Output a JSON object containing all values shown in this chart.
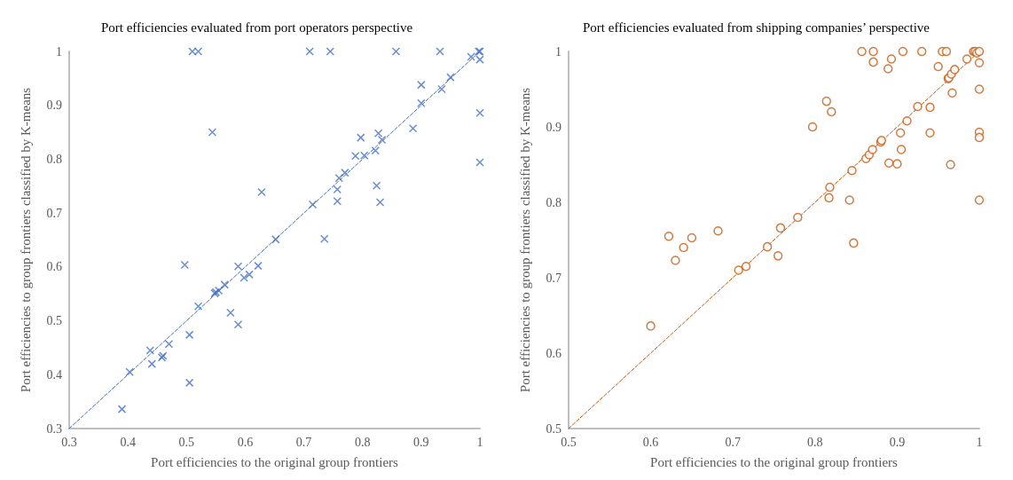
{
  "chart_data": [
    {
      "type": "scatter",
      "title": "Port efficiencies evaluated from port operators perspective",
      "xlabel": "Port efficiencies to the original group frontiers",
      "ylabel": "Port efficiencies to group frontiers classified by K-means",
      "marker": "cross",
      "xlim": [
        0.3,
        1
      ],
      "ylim": [
        0.3,
        1
      ],
      "xticks": [
        0.3,
        0.4,
        0.5,
        0.6,
        0.7,
        0.8,
        0.9,
        1
      ],
      "yticks": [
        0.3,
        0.4,
        0.5,
        0.6,
        0.7,
        0.8,
        0.9,
        1
      ],
      "series": [
        {
          "type": "scatter",
          "color": "#4472c4",
          "x": [
            0.39,
            0.403,
            0.438,
            0.441,
            0.458,
            0.46,
            0.47,
            0.497,
            0.505,
            0.505,
            0.51,
            0.52,
            0.52,
            0.544,
            0.548,
            0.55,
            0.555,
            0.565,
            0.575,
            0.588,
            0.588,
            0.598,
            0.607,
            0.622,
            0.628,
            0.652,
            0.71,
            0.715,
            0.735,
            0.745,
            0.757,
            0.757,
            0.76,
            0.77,
            0.788,
            0.797,
            0.803,
            0.822,
            0.824,
            0.827,
            0.83,
            0.833,
            0.857,
            0.886,
            0.9,
            0.9,
            0.932,
            0.935,
            0.95,
            0.985,
            0.998,
            1,
            1,
            1,
            1
          ],
          "values": [
            0.336,
            0.405,
            0.445,
            0.42,
            0.432,
            0.435,
            0.457,
            0.604,
            0.474,
            0.385,
            1,
            1,
            0.527,
            0.85,
            0.551,
            0.553,
            0.556,
            0.567,
            0.515,
            0.601,
            0.493,
            0.58,
            0.586,
            0.602,
            0.739,
            0.651,
            1,
            0.716,
            0.652,
            1,
            0.744,
            0.722,
            0.765,
            0.775,
            0.806,
            0.84,
            0.807,
            0.816,
            0.751,
            0.848,
            0.72,
            0.836,
            1,
            0.857,
            0.938,
            0.904,
            1,
            0.93,
            0.952,
            0.99,
            1,
            1,
            0.985,
            0.886,
            0.794
          ]
        },
        {
          "type": "line",
          "color": "#4472c4",
          "line_style": "dashed",
          "marker": "none",
          "x": [
            0.3,
            1
          ],
          "values": [
            0.3,
            1
          ]
        }
      ]
    },
    {
      "type": "scatter",
      "title": "Port efficiencies evaluated from shipping companies’ perspective",
      "xlabel": "Port efficiencies to the original group frontiers",
      "ylabel": "Port efficiencies to group frontiers classified by K-means",
      "marker": "circle",
      "xlim": [
        0.5,
        1
      ],
      "ylim": [
        0.5,
        1
      ],
      "xticks": [
        0.5,
        0.6,
        0.7,
        0.8,
        0.9,
        1
      ],
      "yticks": [
        0.5,
        0.6,
        0.7,
        0.8,
        0.9,
        1
      ],
      "series": [
        {
          "type": "scatter",
          "color": "#c55a11",
          "x": [
            0.6,
            0.622,
            0.63,
            0.64,
            0.65,
            0.682,
            0.707,
            0.716,
            0.742,
            0.755,
            0.758,
            0.779,
            0.797,
            0.814,
            0.82,
            0.818,
            0.817,
            0.842,
            0.845,
            0.847,
            0.857,
            0.862,
            0.866,
            0.871,
            0.871,
            0.87,
            0.88,
            0.881,
            0.889,
            0.89,
            0.893,
            0.9,
            0.904,
            0.905,
            0.907,
            0.912,
            0.925,
            0.93,
            0.94,
            0.94,
            0.95,
            0.955,
            0.96,
            0.962,
            0.963,
            0.965,
            0.967,
            0.966,
            0.97,
            0.985,
            0.993,
            0.995,
            0.997,
            1,
            1,
            1,
            1,
            1,
            1
          ],
          "values": [
            0.636,
            0.755,
            0.723,
            0.74,
            0.753,
            0.762,
            0.71,
            0.715,
            0.741,
            0.729,
            0.766,
            0.78,
            0.9,
            0.934,
            0.92,
            0.82,
            0.806,
            0.803,
            0.842,
            0.746,
            1,
            0.858,
            0.863,
            1,
            0.986,
            0.87,
            0.88,
            0.882,
            0.977,
            0.852,
            0.99,
            0.851,
            0.892,
            0.87,
            1,
            0.908,
            0.927,
            1,
            0.926,
            0.892,
            0.98,
            1,
            1,
            0.964,
            0.965,
            0.85,
            0.945,
            0.97,
            0.976,
            0.99,
            1,
            1,
            0.998,
            1,
            0.985,
            0.95,
            0.893,
            0.886,
            0.803
          ]
        },
        {
          "type": "line",
          "color": "#c55a11",
          "line_style": "dashed",
          "marker": "none",
          "x": [
            0.5,
            1
          ],
          "values": [
            0.5,
            1
          ]
        }
      ]
    }
  ]
}
